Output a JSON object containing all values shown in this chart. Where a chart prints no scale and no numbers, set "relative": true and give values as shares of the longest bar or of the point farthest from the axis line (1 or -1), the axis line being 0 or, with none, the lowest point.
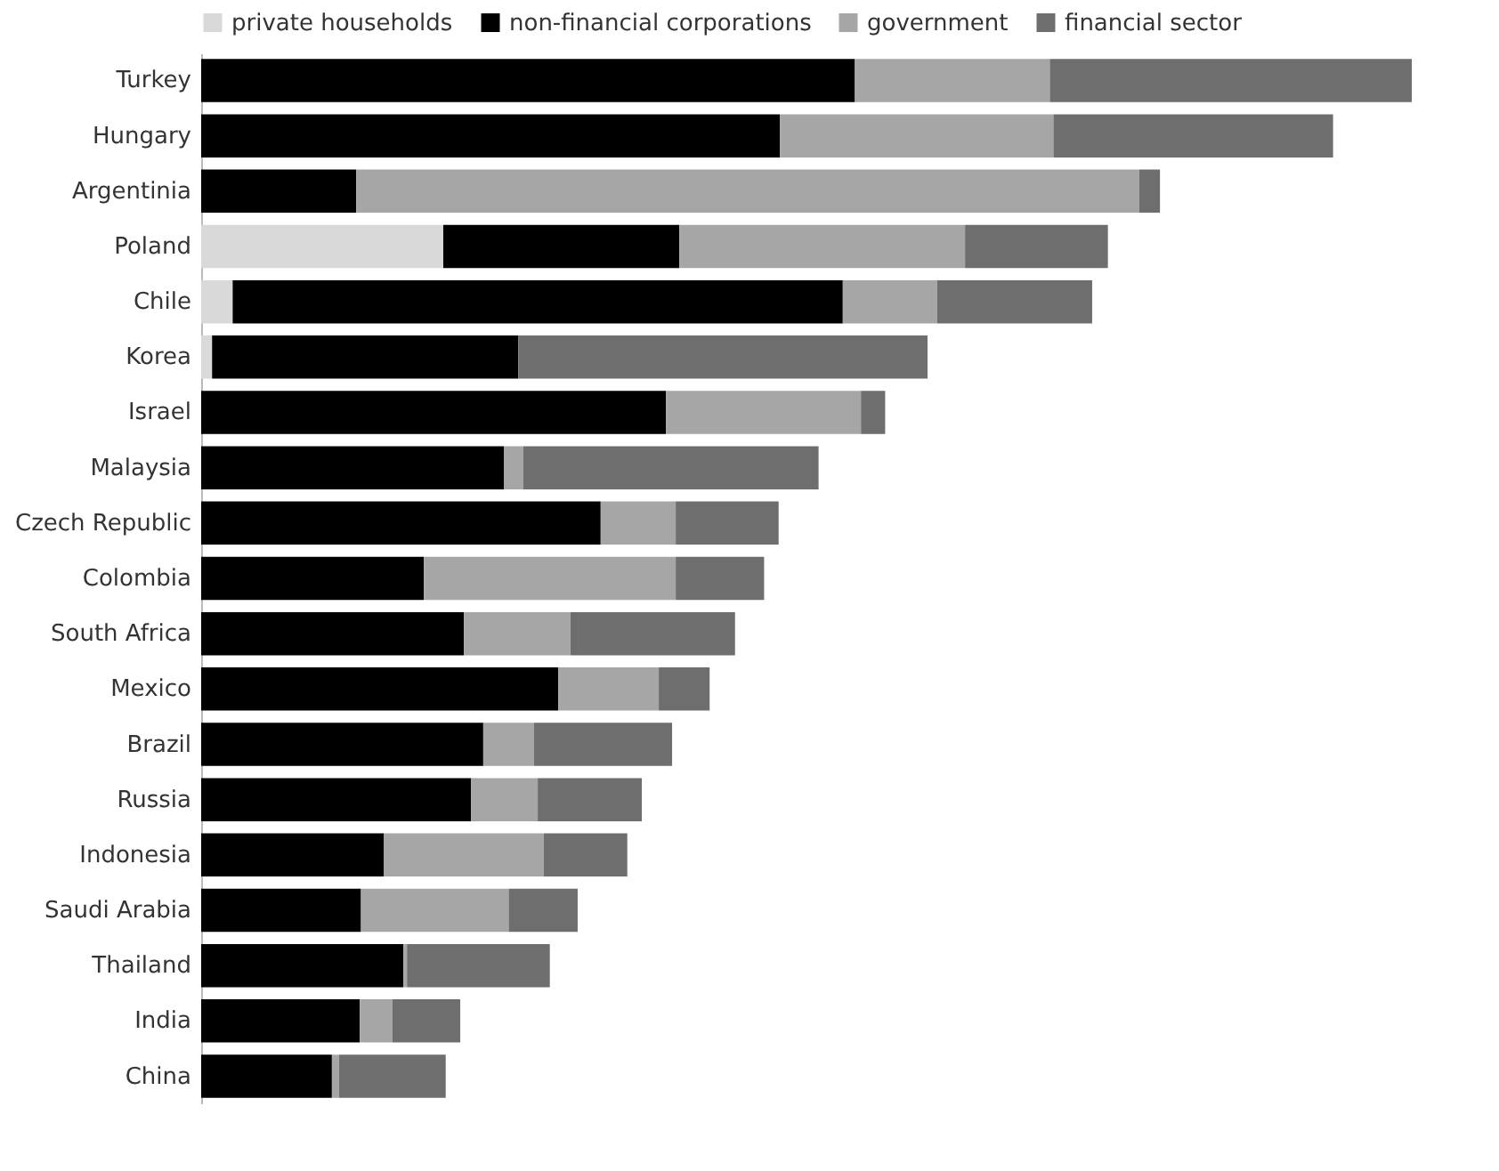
{
  "chart_data": {
    "type": "bar",
    "orientation": "horizontal",
    "stacked": true,
    "relative": true,
    "legend": "top left",
    "categories": [
      "Turkey",
      "Hungary",
      "Argentinia",
      "Poland",
      "Chile",
      "Korea",
      "Israel",
      "Malaysia",
      "Czech Republic",
      "Colombia",
      "South Africa",
      "Mexico",
      "Brazil",
      "Russia",
      "Indonesia",
      "Saudi Arabia",
      "Thailand",
      "India",
      "China"
    ],
    "series": [
      {
        "name": "private households",
        "color": "#d9d9d9",
        "values": [
          0,
          0,
          0,
          0.2,
          0.026,
          0.009,
          0,
          0,
          0,
          0,
          0,
          0,
          0,
          0,
          0,
          0,
          0,
          0,
          0
        ]
      },
      {
        "name": "non-financial corporations",
        "color": "#000000",
        "values": [
          0.54,
          0.478,
          0.128,
          0.195,
          0.504,
          0.253,
          0.384,
          0.25,
          0.33,
          0.184,
          0.217,
          0.295,
          0.233,
          0.223,
          0.151,
          0.132,
          0.167,
          0.131,
          0.108
        ]
      },
      {
        "name": "government",
        "color": "#a6a6a6",
        "values": [
          0.161,
          0.226,
          0.647,
          0.236,
          0.078,
          0,
          0.161,
          0.016,
          0.062,
          0.208,
          0.088,
          0.083,
          0.042,
          0.055,
          0.132,
          0.122,
          0.003,
          0.027,
          0.006
        ]
      },
      {
        "name": "financial sector",
        "color": "#6e6e6e",
        "values": [
          0.299,
          0.231,
          0.017,
          0.118,
          0.128,
          0.338,
          0.02,
          0.244,
          0.085,
          0.073,
          0.136,
          0.042,
          0.114,
          0.086,
          0.069,
          0.057,
          0.118,
          0.056,
          0.088
        ]
      }
    ]
  }
}
